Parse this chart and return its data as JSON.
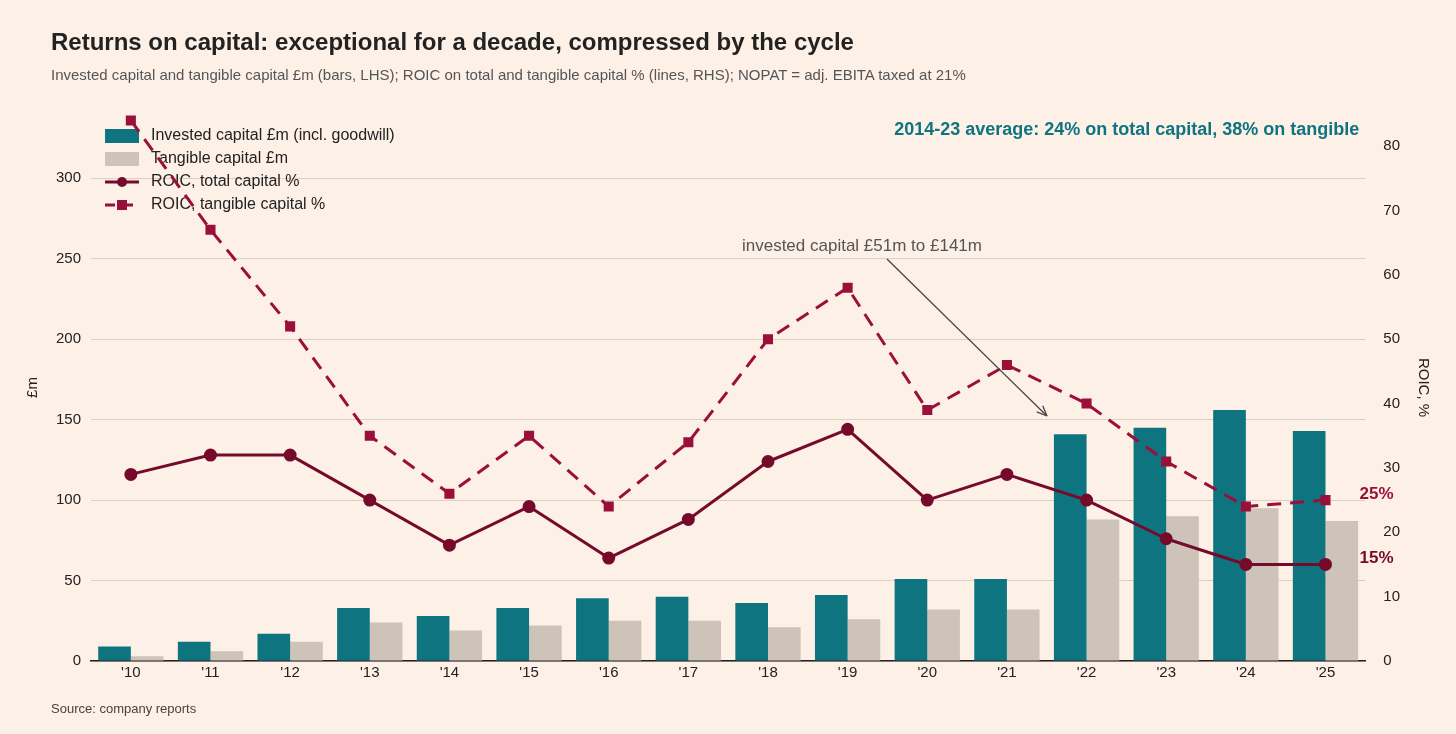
{
  "chart_data": {
    "type": "bar",
    "title": "Returns on capital: exceptional for a decade, compressed by the cycle",
    "subtitle": "Invested capital and tangible capital £m (bars, LHS); ROIC on total and tangible capital % (lines, RHS); NOPAT = adj. EBITA taxed at 21%",
    "ylabel": "£m",
    "y2label": "ROIC, %",
    "categories": [
      "'10",
      "'11",
      "'12",
      "'13",
      "'14",
      "'15",
      "'16",
      "'17",
      "'18",
      "'19",
      "'20",
      "'21",
      "'22",
      "'23",
      "'24",
      "'25"
    ],
    "series": [
      {
        "name": "Invested capital £m (incl. goodwill)",
        "color": "#0e7580",
        "values": [
          9,
          12,
          17,
          33,
          28,
          33,
          39,
          40,
          36,
          41,
          51,
          51,
          141,
          145,
          156,
          143
        ]
      },
      {
        "name": "Tangible capital £m",
        "color": "#cdc3b9",
        "values": [
          3,
          6,
          12,
          24,
          19,
          22,
          25,
          25,
          21,
          26,
          32,
          32,
          88,
          90,
          95,
          87
        ]
      },
      {
        "name": "ROIC, total capital %",
        "type": "line",
        "axis": "y2",
        "color": "#760a2b",
        "marker": "circle",
        "line_style": "solid",
        "values": [
          29,
          32,
          32,
          25,
          18,
          24,
          16,
          22,
          31,
          36,
          25,
          29,
          25,
          19,
          15,
          15
        ],
        "value_labels": [
          null,
          null,
          null,
          null,
          null,
          null,
          null,
          null,
          null,
          null,
          null,
          null,
          null,
          null,
          null,
          "15%"
        ]
      },
      {
        "name": "ROIC, tangible capital %",
        "type": "line",
        "axis": "y2",
        "color": "#9b0f3b",
        "marker": "square",
        "line_style": "dashed",
        "values": [
          84,
          67,
          52,
          35,
          26,
          35,
          24,
          34,
          50,
          58,
          39,
          46,
          40,
          31,
          24,
          25
        ],
        "value_labels": [
          null,
          null,
          null,
          null,
          null,
          null,
          null,
          null,
          null,
          null,
          null,
          null,
          null,
          null,
          null,
          "25%"
        ]
      }
    ],
    "ylim": [
      0,
      340
    ],
    "yticks": [
      0,
      50,
      100,
      150,
      200,
      250,
      300
    ],
    "y2lim": [
      0,
      85
    ],
    "y2ticks": [
      0,
      10,
      20,
      30,
      40,
      50,
      60,
      70,
      80
    ],
    "grid": "y",
    "legend": "top left",
    "annotations": [
      "2014-23 average: 24% on total capital, 38% on tangible",
      "invested capital £51m to £141m",
      "Source: company reports"
    ]
  }
}
